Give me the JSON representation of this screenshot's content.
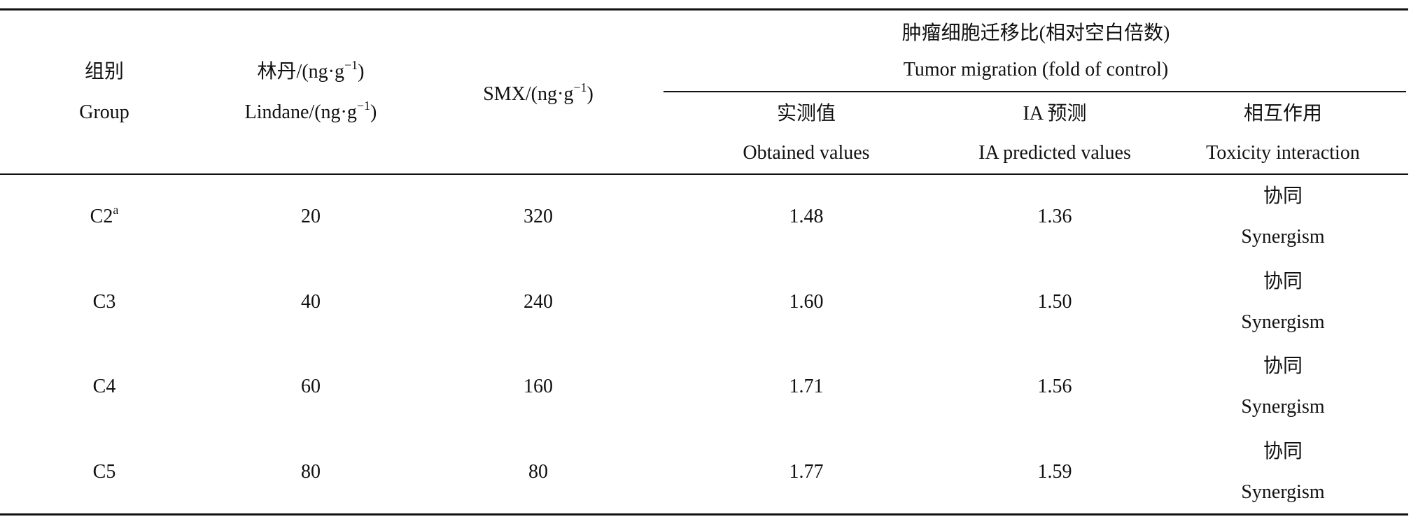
{
  "table": {
    "header": {
      "group": {
        "zh": "组别",
        "en": "Group"
      },
      "lindane": {
        "zh": {
          "text": "林丹/(ng·g",
          "sup": "−1",
          "tail": ")"
        },
        "en": {
          "text": "Lindane/(ng·g",
          "sup": "−1",
          "tail": ")"
        }
      },
      "smx": {
        "text": "SMX/(ng·g",
        "sup": "−1",
        "tail": ")"
      },
      "tumor_migration": {
        "zh": "肿瘤细胞迁移比(相对空白倍数)",
        "en": "Tumor migration (fold of control)"
      },
      "obtained": {
        "zh": "实测值",
        "en": "Obtained values"
      },
      "ia_predicted": {
        "zh": "IA 预测",
        "en": "IA predicted values"
      },
      "interaction": {
        "zh": "相互作用",
        "en": "Toxicity interaction"
      }
    },
    "rows": [
      {
        "group": {
          "text": "C2",
          "sup": "a"
        },
        "lindane": "20",
        "smx": "320",
        "obtained": "1.48",
        "ia_predicted": "1.36",
        "interaction": {
          "zh": "协同",
          "en": "Synergism"
        }
      },
      {
        "group": {
          "text": "C3"
        },
        "lindane": "40",
        "smx": "240",
        "obtained": "1.60",
        "ia_predicted": "1.50",
        "interaction": {
          "zh": "协同",
          "en": "Synergism"
        }
      },
      {
        "group": {
          "text": "C4"
        },
        "lindane": "60",
        "smx": "160",
        "obtained": "1.71",
        "ia_predicted": "1.56",
        "interaction": {
          "zh": "协同",
          "en": "Synergism"
        }
      },
      {
        "group": {
          "text": "C5"
        },
        "lindane": "80",
        "smx": "80",
        "obtained": "1.77",
        "ia_predicted": "1.59",
        "interaction": {
          "zh": "协同",
          "en": "Synergism"
        }
      }
    ]
  }
}
